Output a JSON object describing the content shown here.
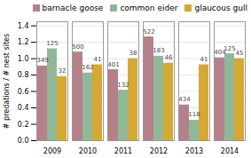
{
  "chart_data": {
    "type": "bar",
    "categories": [
      "2009",
      "2010",
      "2011",
      "2012",
      "2013",
      "2014"
    ],
    "series": [
      {
        "name": "barnacle goose",
        "color": "#b5808a",
        "values": [
          0.91,
          1.08,
          0.865,
          1.265,
          0.435,
          1.01
        ],
        "n": [
          349,
          500,
          401,
          522,
          434,
          404
        ]
      },
      {
        "name": "common eider",
        "color": "#90b898",
        "values": [
          1.12,
          0.825,
          0.615,
          1.03,
          0.25,
          1.06
        ],
        "n": [
          125,
          162,
          132,
          183,
          118,
          125
        ]
      },
      {
        "name": "glaucous gull",
        "color": "#d4a832",
        "values": [
          0.78,
          0.925,
          1.0,
          0.945,
          0.925,
          1.0
        ],
        "n": [
          32,
          41,
          38,
          46,
          41,
          45
        ]
      }
    ],
    "ylabel": "# predations / # nest sites",
    "ylim": [
      0,
      1.45
    ],
    "yticks": [
      {
        "value": 0.0,
        "label": "0.0"
      },
      0.2,
      0.4,
      0.6,
      0.8,
      {
        "value": 1.0,
        "label": "1.0"
      },
      1.2,
      1.4
    ],
    "grid": true,
    "legend": "upper right"
  }
}
